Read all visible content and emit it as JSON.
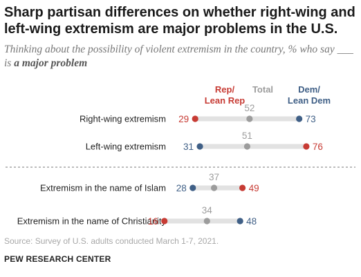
{
  "title": "Sharp partisan differences on whether right-wing and left-wing extremism are major problems in the U.S.",
  "subtitle": {
    "before": "Thinking about the possibility of violent extremism in the country, % who say ___ is ",
    "emphasis": "a major problem"
  },
  "legend": {
    "rep": [
      "Rep/",
      "Lean Rep"
    ],
    "total": "Total",
    "dem": [
      "Dem/",
      "Lean Dem"
    ]
  },
  "colors": {
    "rep": "#c73b34",
    "total": "#9c9c9c",
    "dem": "#3f5f86",
    "track": "#e2e2e2"
  },
  "chart_data": {
    "type": "dot",
    "categories": [
      "Right-wing extremism",
      "Left-wing extremism",
      "Extremism in the name of Islam",
      "Extremism in the name of Christianity"
    ],
    "series": [
      {
        "name": "Rep/Lean Rep",
        "values": [
          29,
          76,
          49,
          16
        ]
      },
      {
        "name": "Total",
        "values": [
          52,
          51,
          37,
          34
        ]
      },
      {
        "name": "Dem/Lean Dem",
        "values": [
          73,
          31,
          28,
          48
        ]
      }
    ],
    "xlim": [
      0,
      100
    ]
  },
  "source": "Source: Survey of U.S. adults conducted March 1-7, 2021.",
  "organization": "PEW RESEARCH CENTER"
}
